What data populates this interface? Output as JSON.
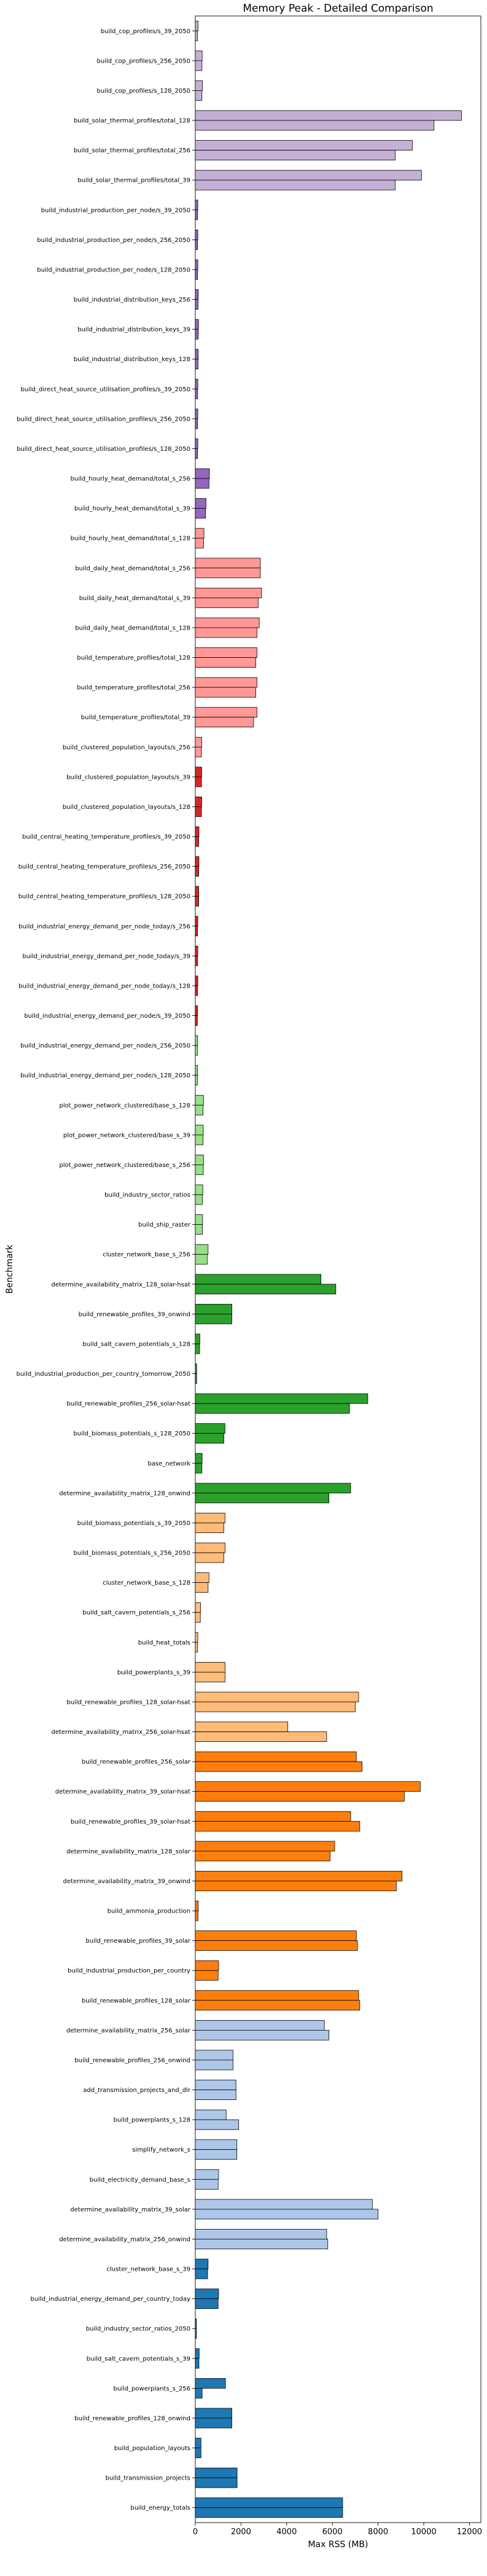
{
  "chart_data": {
    "type": "bar",
    "orientation": "horizontal",
    "title": "Memory Peak - Detailed Comparison",
    "xlabel": "Max RSS (MB)",
    "ylabel": "Benchmark",
    "xlim": [
      0,
      12500
    ],
    "xticks": [
      0,
      2000,
      4000,
      6000,
      8000,
      10000,
      12000
    ],
    "grid": false,
    "categories": [
      "build_cop_profiles/s_39_2050",
      "build_cop_profiles/s_256_2050",
      "build_cop_profiles/s_128_2050",
      "build_solar_thermal_profiles/total_128",
      "build_solar_thermal_profiles/total_256",
      "build_solar_thermal_profiles/total_39",
      "build_industrial_production_per_node/s_39_2050",
      "build_industrial_production_per_node/s_256_2050",
      "build_industrial_production_per_node/s_128_2050",
      "build_industrial_distribution_keys_256",
      "build_industrial_distribution_keys_39",
      "build_industrial_distribution_keys_128",
      "build_direct_heat_source_utilisation_profiles/s_39_2050",
      "build_direct_heat_source_utilisation_profiles/s_256_2050",
      "build_direct_heat_source_utilisation_profiles/s_128_2050",
      "build_hourly_heat_demand/total_s_256",
      "build_hourly_heat_demand/total_s_39",
      "build_hourly_heat_demand/total_s_128",
      "build_daily_heat_demand/total_s_256",
      "build_daily_heat_demand/total_s_39",
      "build_daily_heat_demand/total_s_128",
      "build_temperature_profiles/total_128",
      "build_temperature_profiles/total_256",
      "build_temperature_profiles/total_39",
      "build_clustered_population_layouts/s_256",
      "build_clustered_population_layouts/s_39",
      "build_clustered_population_layouts/s_128",
      "build_central_heating_temperature_profiles/s_39_2050",
      "build_central_heating_temperature_profiles/s_256_2050",
      "build_central_heating_temperature_profiles/s_128_2050",
      "build_industrial_energy_demand_per_node_today/s_256",
      "build_industrial_energy_demand_per_node_today/s_39",
      "build_industrial_energy_demand_per_node_today/s_128",
      "build_industrial_energy_demand_per_node/s_39_2050",
      "build_industrial_energy_demand_per_node/s_256_2050",
      "build_industrial_energy_demand_per_node/s_128_2050",
      "plot_power_network_clustered/base_s_128",
      "plot_power_network_clustered/base_s_39",
      "plot_power_network_clustered/base_s_256",
      "build_industry_sector_ratios",
      "build_ship_raster",
      "cluster_network_base_s_256",
      "determine_availability_matrix_128_solar-hsat",
      "build_renewable_profiles_39_onwind",
      "build_salt_cavern_potentials_s_128",
      "build_industrial_production_per_country_tomorrow_2050",
      "build_renewable_profiles_256_solar-hsat",
      "build_biomass_potentials_s_128_2050",
      "base_network",
      "determine_availability_matrix_128_onwind",
      "build_biomass_potentials_s_39_2050",
      "build_biomass_potentials_s_256_2050",
      "cluster_network_base_s_128",
      "build_salt_cavern_potentials_s_256",
      "build_heat_totals",
      "build_powerplants_s_39",
      "build_renewable_profiles_128_solar-hsat",
      "determine_availability_matrix_256_solar-hsat",
      "build_renewable_profiles_256_solar",
      "determine_availability_matrix_39_solar-hsat",
      "build_renewable_profiles_39_solar-hsat",
      "determine_availability_matrix_128_solar",
      "determine_availability_matrix_39_onwind",
      "build_ammonia_production",
      "build_renewable_profiles_39_solar",
      "build_industrial_production_per_country",
      "build_renewable_profiles_128_solar",
      "determine_availability_matrix_256_solar",
      "build_renewable_profiles_256_onwind",
      "add_transmission_projects_and_dlr",
      "build_powerplants_s_128",
      "simplify_network_s",
      "build_electricity_demand_base_s",
      "determine_availability_matrix_39_solar",
      "determine_availability_matrix_256_onwind",
      "cluster_network_base_s_39",
      "build_industrial_energy_demand_per_country_today",
      "build_industry_sector_ratios_2050",
      "build_salt_cavern_potentials_s_39",
      "build_powerplants_s_256",
      "build_renewable_profiles_128_onwind",
      "build_population_layouts",
      "build_transmission_projects",
      "build_energy_totals"
    ],
    "series": [
      {
        "values": [
          120,
          300,
          310,
          11650,
          9500,
          9900,
          110,
          110,
          110,
          130,
          140,
          130,
          110,
          110,
          110,
          620,
          470,
          380,
          2850,
          2900,
          2800,
          2700,
          2700,
          2700,
          280,
          280,
          280,
          160,
          160,
          150,
          110,
          110,
          110,
          100,
          100,
          100,
          360,
          350,
          360,
          330,
          320,
          560,
          5500,
          1600,
          200,
          60,
          7550,
          1300,
          300,
          6800,
          1300,
          1300,
          600,
          230,
          110,
          1300,
          7150,
          4050,
          7050,
          9850,
          6800,
          6100,
          9050,
          130,
          7050,
          1020,
          7150,
          5650,
          1650,
          1780,
          1350,
          1820,
          1020,
          7750,
          5750,
          560,
          1020,
          50,
          170,
          1320,
          1600,
          250,
          1830,
          6450
        ],
        "colors": [
          "#c5b0d5",
          "#c5b0d5",
          "#c5b0d5",
          "#c5b0d5",
          "#c5b0d5",
          "#c5b0d5",
          "#9467bd",
          "#9467bd",
          "#9467bd",
          "#9467bd",
          "#9467bd",
          "#9467bd",
          "#9467bd",
          "#9467bd",
          "#9467bd",
          "#9467bd",
          "#9467bd",
          "#ff9896",
          "#ff9896",
          "#ff9896",
          "#ff9896",
          "#ff9896",
          "#ff9896",
          "#ff9896",
          "#ff9896",
          "#d62728",
          "#d62728",
          "#d62728",
          "#d62728",
          "#d62728",
          "#d62728",
          "#d62728",
          "#d62728",
          "#d62728",
          "#98df8a",
          "#98df8a",
          "#98df8a",
          "#98df8a",
          "#98df8a",
          "#98df8a",
          "#98df8a",
          "#98df8a",
          "#2ca02c",
          "#2ca02c",
          "#2ca02c",
          "#2ca02c",
          "#2ca02c",
          "#2ca02c",
          "#2ca02c",
          "#2ca02c",
          "#ffbb78",
          "#ffbb78",
          "#ffbb78",
          "#ffbb78",
          "#ffbb78",
          "#ffbb78",
          "#ffbb78",
          "#ffbb78",
          "#ff7f0e",
          "#ff7f0e",
          "#ff7f0e",
          "#ff7f0e",
          "#ff7f0e",
          "#ff7f0e",
          "#ff7f0e",
          "#ff7f0e",
          "#ff7f0e",
          "#aec7e8",
          "#aec7e8",
          "#aec7e8",
          "#aec7e8",
          "#aec7e8",
          "#aec7e8",
          "#aec7e8",
          "#aec7e8",
          "#1f77b4",
          "#1f77b4",
          "#1f77b4",
          "#1f77b4",
          "#1f77b4",
          "#1f77b4",
          "#1f77b4",
          "#1f77b4",
          "#1f77b4"
        ]
      },
      {
        "values": [
          100,
          290,
          290,
          10450,
          8750,
          8750,
          100,
          100,
          100,
          120,
          130,
          120,
          100,
          100,
          100,
          600,
          450,
          360,
          2850,
          2750,
          2700,
          2650,
          2650,
          2550,
          270,
          270,
          270,
          150,
          150,
          150,
          100,
          100,
          100,
          90,
          90,
          90,
          340,
          340,
          350,
          310,
          310,
          520,
          6150,
          1600,
          190,
          60,
          6750,
          1250,
          290,
          5850,
          1250,
          1250,
          560,
          220,
          100,
          1300,
          7000,
          5750,
          7300,
          9150,
          7200,
          5900,
          8800,
          120,
          7100,
          1000,
          7200,
          5850,
          1650,
          1780,
          1900,
          1820,
          1000,
          8000,
          5800,
          540,
          1000,
          50,
          160,
          300,
          1600,
          250,
          1830,
          6450
        ]
      }
    ]
  }
}
